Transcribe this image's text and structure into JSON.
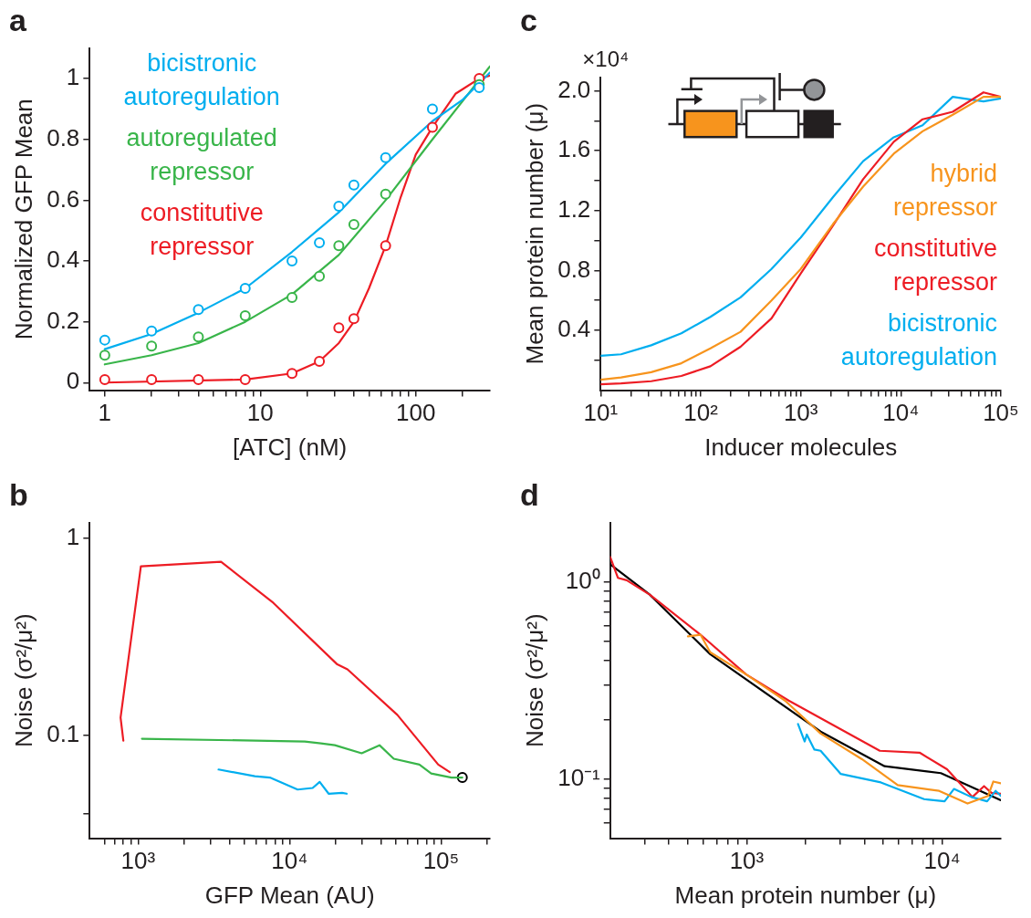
{
  "chart_data": [
    {
      "type": "line",
      "title": "a",
      "xlabel": "[ATC] (nM)",
      "ylabel": "Normalized GFP Mean",
      "log": "x",
      "legend": "top left",
      "xlim": [
        0.8,
        300
      ],
      "xticks": [
        1,
        {
          "value": 2,
          "label": null
        },
        {
          "value": 3,
          "label": null
        },
        {
          "value": 4,
          "label": null
        },
        {
          "value": 5,
          "label": null
        },
        {
          "value": 6,
          "label": null
        },
        {
          "value": 7,
          "label": null
        },
        {
          "value": 8,
          "label": null
        },
        {
          "value": 9,
          "label": null
        },
        10,
        {
          "value": 20,
          "label": null
        },
        {
          "value": 30,
          "label": null
        },
        {
          "value": 40,
          "label": null
        },
        {
          "value": 50,
          "label": null
        },
        {
          "value": 60,
          "label": null
        },
        {
          "value": 70,
          "label": null
        },
        {
          "value": 80,
          "label": null
        },
        {
          "value": 90,
          "label": null
        },
        100,
        {
          "value": 200,
          "label": null
        }
      ],
      "ylim": [
        -0.025,
        1.1
      ],
      "yticks": [
        0,
        0.2,
        0.4,
        0.6,
        0.8,
        1
      ],
      "series": [
        {
          "type": "scatter",
          "marker": "circle",
          "color": "#00aeef",
          "x": [
            1,
            2,
            4,
            8,
            16,
            24,
            32,
            40,
            64,
            128,
            256
          ],
          "values": [
            0.14,
            0.17,
            0.24,
            0.31,
            0.4,
            0.46,
            0.58,
            0.65,
            0.74,
            0.9,
            0.97
          ]
        },
        {
          "type": "scatter",
          "marker": "circle",
          "color": "#39b54a",
          "x": [
            1,
            2,
            4,
            8,
            16,
            24,
            32,
            40,
            64,
            256
          ],
          "values": [
            0.09,
            0.12,
            0.15,
            0.22,
            0.28,
            0.35,
            0.45,
            0.52,
            0.62,
            0.98
          ]
        },
        {
          "type": "scatter",
          "marker": "circle",
          "color": "#ed1c24",
          "x": [
            1,
            2,
            4,
            8,
            16,
            24,
            32,
            40,
            64,
            128,
            256
          ],
          "values": [
            0.01,
            0.01,
            0.01,
            0.01,
            0.03,
            0.07,
            0.18,
            0.21,
            0.45,
            0.84,
            1.0
          ]
        },
        {
          "name": "bicistronic autoregulation",
          "type": "line",
          "color": "#00aeef",
          "x": [
            1,
            2,
            4,
            8,
            16,
            32,
            64,
            128,
            200,
            300
          ],
          "values": [
            0.11,
            0.16,
            0.23,
            0.31,
            0.43,
            0.56,
            0.72,
            0.86,
            0.93,
            1.02
          ]
        },
        {
          "name": "autoregulated repressor",
          "type": "line",
          "color": "#39b54a",
          "x": [
            1,
            2,
            4,
            8,
            16,
            32,
            64,
            128,
            300
          ],
          "values": [
            0.06,
            0.09,
            0.13,
            0.2,
            0.29,
            0.42,
            0.6,
            0.8,
            1.04
          ]
        },
        {
          "name": "constitutive repressor",
          "type": "line",
          "color": "#ed1c24",
          "x": [
            1,
            8,
            16,
            24,
            32,
            40,
            50,
            64,
            80,
            100,
            128,
            180,
            256,
            300
          ],
          "values": [
            0,
            0.01,
            0.03,
            0.07,
            0.13,
            0.2,
            0.31,
            0.45,
            0.61,
            0.75,
            0.84,
            0.95,
            1.0,
            1.01
          ]
        }
      ]
    },
    {
      "type": "line",
      "title": "c",
      "xlabel": "Inducer molecules",
      "ylabel": "Mean protein number (μ)",
      "log": "x",
      "legend": "bottom right",
      "annotations": [
        "×10⁴"
      ],
      "xlim": [
        10,
        100000
      ],
      "xticks": [
        {
          "value": 10,
          "label": "10¹"
        },
        {
          "value": 20,
          "label": null
        },
        {
          "value": 30,
          "label": null
        },
        {
          "value": 40,
          "label": null
        },
        {
          "value": 50,
          "label": null
        },
        {
          "value": 60,
          "label": null
        },
        {
          "value": 70,
          "label": null
        },
        {
          "value": 80,
          "label": null
        },
        {
          "value": 90,
          "label": null
        },
        {
          "value": 100,
          "label": "10²"
        },
        {
          "value": 200,
          "label": null
        },
        {
          "value": 300,
          "label": null
        },
        {
          "value": 400,
          "label": null
        },
        {
          "value": 500,
          "label": null
        },
        {
          "value": 600,
          "label": null
        },
        {
          "value": 700,
          "label": null
        },
        {
          "value": 800,
          "label": null
        },
        {
          "value": 900,
          "label": null
        },
        {
          "value": 1000,
          "label": "10³"
        },
        {
          "value": 2000,
          "label": null
        },
        {
          "value": 3000,
          "label": null
        },
        {
          "value": 4000,
          "label": null
        },
        {
          "value": 5000,
          "label": null
        },
        {
          "value": 6000,
          "label": null
        },
        {
          "value": 7000,
          "label": null
        },
        {
          "value": 8000,
          "label": null
        },
        {
          "value": 9000,
          "label": null
        },
        {
          "value": 10000,
          "label": "10⁴"
        },
        {
          "value": 20000,
          "label": null
        },
        {
          "value": 30000,
          "label": null
        },
        {
          "value": 40000,
          "label": null
        },
        {
          "value": 50000,
          "label": null
        },
        {
          "value": 60000,
          "label": null
        },
        {
          "value": 70000,
          "label": null
        },
        {
          "value": 80000,
          "label": null
        },
        {
          "value": 90000,
          "label": null
        },
        {
          "value": 100000,
          "label": "10⁵"
        }
      ],
      "ylim": [
        0,
        2.09
      ],
      "yticks": [
        {
          "value": 0.2,
          "label": null
        },
        0.4,
        {
          "value": 0.6,
          "label": null
        },
        0.8,
        {
          "value": 1,
          "label": null
        },
        1.2,
        {
          "value": 1.4,
          "label": null
        },
        1.6,
        {
          "value": 1.8,
          "label": null
        },
        {
          "value": 2,
          "label": "2.0"
        }
      ],
      "series": [
        {
          "name": "hybrid repressor",
          "color": "#f7941d",
          "x": [
            10,
            16,
            32,
            64,
            125,
            250,
            510,
            1000,
            2100,
            4200,
            8500,
            16500,
            33000,
            67000,
            100000
          ],
          "values": [
            0.07,
            0.085,
            0.12,
            0.18,
            0.28,
            0.39,
            0.6,
            0.81,
            1.11,
            1.36,
            1.58,
            1.73,
            1.84,
            1.96,
            1.96
          ]
        },
        {
          "name": "constitutive repressor",
          "color": "#ed1c24",
          "x": [
            10,
            16,
            32,
            64,
            125,
            250,
            510,
            1000,
            2100,
            4200,
            8500,
            16500,
            33000,
            67000,
            100000
          ],
          "values": [
            0.04,
            0.045,
            0.06,
            0.095,
            0.16,
            0.29,
            0.48,
            0.78,
            1.1,
            1.41,
            1.66,
            1.81,
            1.86,
            1.99,
            1.96
          ]
        },
        {
          "name": "bicistronic autoregulation",
          "color": "#00aeef",
          "x": [
            10,
            16,
            32,
            64,
            125,
            250,
            510,
            1000,
            2100,
            4200,
            8500,
            16500,
            33000,
            67000,
            100000
          ],
          "values": [
            0.23,
            0.24,
            0.3,
            0.38,
            0.49,
            0.62,
            0.81,
            1.02,
            1.29,
            1.53,
            1.69,
            1.77,
            1.96,
            1.93,
            1.95
          ]
        }
      ]
    },
    {
      "type": "line",
      "title": "b",
      "xlabel": "GFP Mean (AU)",
      "ylabel": "Noise (σ²/μ²)",
      "log": "xy",
      "xlim": [
        480,
        210000
      ],
      "xticks": [
        {
          "value": 600,
          "label": null
        },
        {
          "value": 700,
          "label": null
        },
        {
          "value": 800,
          "label": null
        },
        {
          "value": 900,
          "label": null
        },
        {
          "value": 1000,
          "label": "10³"
        },
        {
          "value": 2000,
          "label": null
        },
        {
          "value": 3000,
          "label": null
        },
        {
          "value": 4000,
          "label": null
        },
        {
          "value": 5000,
          "label": null
        },
        {
          "value": 6000,
          "label": null
        },
        {
          "value": 7000,
          "label": null
        },
        {
          "value": 8000,
          "label": null
        },
        {
          "value": 9000,
          "label": null
        },
        {
          "value": 10000,
          "label": "10⁴"
        },
        {
          "value": 20000,
          "label": null
        },
        {
          "value": 30000,
          "label": null
        },
        {
          "value": 40000,
          "label": null
        },
        {
          "value": 50000,
          "label": null
        },
        {
          "value": 60000,
          "label": null
        },
        {
          "value": 70000,
          "label": null
        },
        {
          "value": 80000,
          "label": null
        },
        {
          "value": 90000,
          "label": null
        },
        {
          "value": 100000,
          "label": "10⁵"
        },
        {
          "value": 200000,
          "label": null
        }
      ],
      "ylim": [
        0.03,
        1.2
      ],
      "yticks": [
        {
          "value": 0.04,
          "label": null
        },
        0.1,
        1
      ],
      "series": [
        {
          "color": "#ed1c24",
          "x": [
            800,
            767,
            1044,
            3530,
            7820,
            20500,
            24100,
            51400,
            95700,
            114000
          ],
          "values": [
            0.094,
            0.123,
            0.72,
            0.76,
            0.47,
            0.23,
            0.216,
            0.127,
            0.071,
            0.065
          ]
        },
        {
          "color": "#39b54a",
          "x": [
            1061,
            12600,
            16100,
            19900,
            29900,
            39200,
            48700,
            71900,
            86000,
            117000,
            138000
          ],
          "values": [
            0.096,
            0.093,
            0.091,
            0.089,
            0.081,
            0.089,
            0.076,
            0.071,
            0.064,
            0.061,
            0.061
          ]
        },
        {
          "color": "#00aeef",
          "x": [
            3400,
            5900,
            7410,
            11300,
            14200,
            15800,
            18100,
            22200,
            23800
          ],
          "values": [
            0.067,
            0.062,
            0.061,
            0.053,
            0.054,
            0.058,
            0.0505,
            0.051,
            0.0505
          ]
        },
        {
          "type": "scatter",
          "marker": "circle",
          "color": "#000000",
          "x": [
            138000
          ],
          "values": [
            0.061
          ]
        }
      ]
    },
    {
      "type": "line",
      "xlabel": "Mean protein number (μ)",
      "ylabel": "Noise (σ²/μ²)",
      "title": "d",
      "log": "xy",
      "xlim": [
        200,
        20000
      ],
      "xticks": [
        {
          "value": 300,
          "label": null
        },
        {
          "value": 400,
          "label": null
        },
        {
          "value": 500,
          "label": null
        },
        {
          "value": 600,
          "label": null
        },
        {
          "value": 700,
          "label": null
        },
        {
          "value": 800,
          "label": null
        },
        {
          "value": 900,
          "label": null
        },
        {
          "value": 1000,
          "label": "10³"
        },
        {
          "value": 2000,
          "label": null
        },
        {
          "value": 3000,
          "label": null
        },
        {
          "value": 4000,
          "label": null
        },
        {
          "value": 5000,
          "label": null
        },
        {
          "value": 6000,
          "label": null
        },
        {
          "value": 7000,
          "label": null
        },
        {
          "value": 8000,
          "label": null
        },
        {
          "value": 9000,
          "label": null
        },
        {
          "value": 10000,
          "label": "10⁴"
        }
      ],
      "ylim": [
        0.05,
        2
      ],
      "yticks": [
        {
          "value": 0.06,
          "label": null
        },
        {
          "value": 0.07,
          "label": null
        },
        {
          "value": 0.08,
          "label": null
        },
        {
          "value": 0.09,
          "label": null
        },
        {
          "value": 0.1,
          "label": "10⁻¹"
        },
        {
          "value": 0.2,
          "label": null
        },
        {
          "value": 0.3,
          "label": null
        },
        {
          "value": 0.4,
          "label": null
        },
        {
          "value": 0.5,
          "label": null
        },
        {
          "value": 0.6,
          "label": null
        },
        {
          "value": 0.7,
          "label": null
        },
        {
          "value": 0.8,
          "label": null
        },
        {
          "value": 0.9,
          "label": null
        },
        {
          "value": 1,
          "label": "10⁰"
        }
      ],
      "series": [
        {
          "color": "#f7941d",
          "x": [
            500,
            580,
            650,
            990,
            1570,
            2390,
            3890,
            5930,
            9660,
            13500,
            17200,
            18300,
            20000
          ],
          "values": [
            0.53,
            0.54,
            0.44,
            0.34,
            0.25,
            0.17,
            0.126,
            0.093,
            0.087,
            0.075,
            0.082,
            0.097,
            0.095
          ]
        },
        {
          "color": "#00aeef",
          "x": [
            1830,
            1980,
            2030,
            2220,
            2390,
            3030,
            4860,
            8090,
            10300,
            11500,
            14100,
            17000,
            18800,
            20000
          ],
          "values": [
            0.19,
            0.155,
            0.168,
            0.141,
            0.139,
            0.106,
            0.096,
            0.079,
            0.077,
            0.089,
            0.081,
            0.077,
            0.087,
            0.082
          ]
        },
        {
          "color": "#ed1c24",
          "x": [
            200,
            219,
            243,
            320,
            580,
            990,
            1640,
            4800,
            7670,
            10600,
            14300,
            16400,
            17900,
            20000
          ],
          "values": [
            1.34,
            1.05,
            1.02,
            0.86,
            0.54,
            0.34,
            0.25,
            0.139,
            0.136,
            0.112,
            0.081,
            0.092,
            0.085,
            0.084
          ]
        },
        {
          "color": "#000000",
          "x": [
            200,
            320,
            650,
            2390,
            5080,
            9860,
            20000
          ],
          "values": [
            1.23,
            0.86,
            0.43,
            0.174,
            0.116,
            0.107,
            0.078
          ]
        }
      ]
    }
  ]
}
